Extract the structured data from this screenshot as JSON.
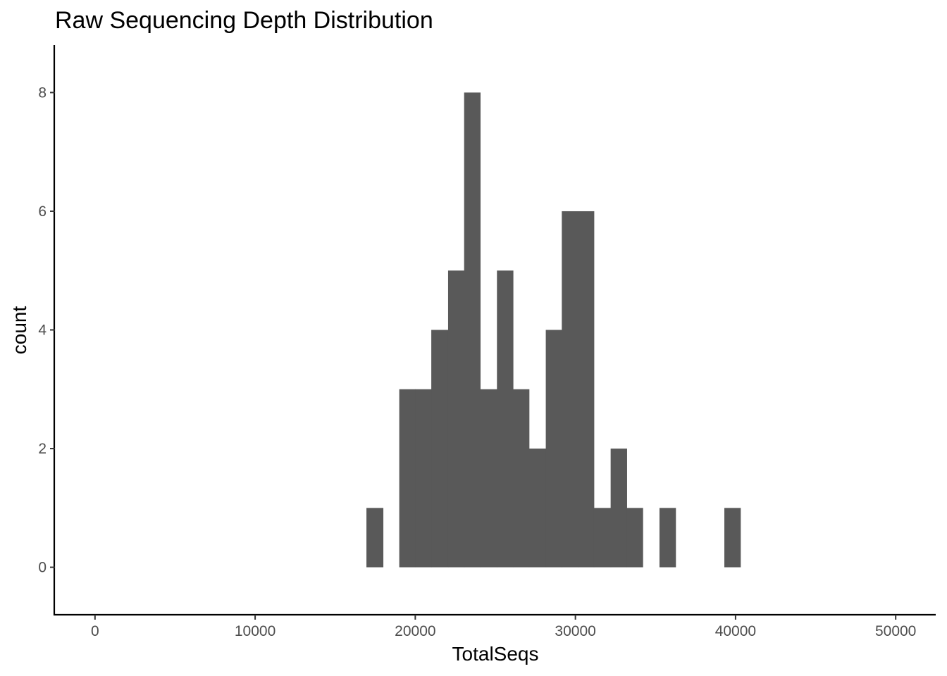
{
  "chart_data": {
    "type": "bar",
    "title": "Raw Sequencing Depth Distribution",
    "xlabel": "TotalSeqs",
    "ylabel": "count",
    "xlim": [
      -2500,
      52500
    ],
    "ylim": [
      -0.8,
      8.8
    ],
    "x_ticks": [
      0,
      10000,
      20000,
      30000,
      40000,
      50000
    ],
    "x_tick_labels": [
      "0",
      "10000",
      "20000",
      "30000",
      "40000",
      "50000"
    ],
    "y_ticks": [
      0,
      2,
      4,
      6,
      8
    ],
    "y_tick_labels": [
      "0",
      "2",
      "4",
      "6",
      "8"
    ],
    "grid": false,
    "bar_color": "#595959",
    "bins": [
      {
        "start": 16950,
        "end": 17980,
        "count": 1
      },
      {
        "start": 19000,
        "end": 20000,
        "count": 3
      },
      {
        "start": 20000,
        "end": 21000,
        "count": 3
      },
      {
        "start": 21000,
        "end": 22050,
        "count": 4
      },
      {
        "start": 22050,
        "end": 23050,
        "count": 5
      },
      {
        "start": 23050,
        "end": 24050,
        "count": 8
      },
      {
        "start": 24050,
        "end": 25100,
        "count": 3
      },
      {
        "start": 25100,
        "end": 26100,
        "count": 5
      },
      {
        "start": 26100,
        "end": 27100,
        "count": 3
      },
      {
        "start": 27100,
        "end": 28150,
        "count": 2
      },
      {
        "start": 28150,
        "end": 29150,
        "count": 4
      },
      {
        "start": 29150,
        "end": 30150,
        "count": 6
      },
      {
        "start": 30150,
        "end": 31150,
        "count": 6
      },
      {
        "start": 31150,
        "end": 32200,
        "count": 1
      },
      {
        "start": 32200,
        "end": 33200,
        "count": 2
      },
      {
        "start": 33200,
        "end": 34200,
        "count": 1
      },
      {
        "start": 35250,
        "end": 36250,
        "count": 1
      },
      {
        "start": 39300,
        "end": 40300,
        "count": 1
      }
    ]
  }
}
